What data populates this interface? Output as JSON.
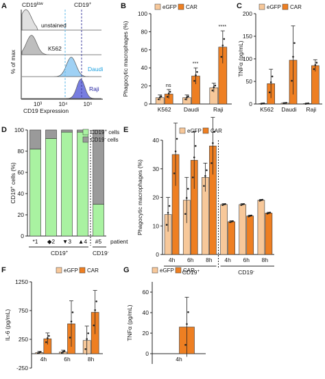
{
  "colors": {
    "egfp": "#f7c89a",
    "car": "#ee7f22",
    "cd19pos": "#a9f2a1",
    "cd19neg": "#9a9a9a",
    "unstained": "#d6d6d6",
    "k562": "#a8a8a8",
    "daudi": "#7fc2f0",
    "raji": "#4a52d6",
    "daudi_text": "#1a9fe0",
    "raji_text": "#2020a0",
    "stroke": "#222222"
  },
  "panels": [
    "A",
    "B",
    "C",
    "D",
    "E",
    "F",
    "G"
  ],
  "chart_data": [
    {
      "panel": "A",
      "type": "histogram",
      "ylabel": "% of max",
      "xlabel": "CD19 Expression",
      "gates": [
        "CD19low",
        "CD19+"
      ],
      "gate_parts": {
        "low_base": "CD19",
        "low_sup": "low",
        "pos_base": "CD19",
        "pos_sup": "+"
      },
      "tick_labels": [
        "10³",
        "10⁴",
        "10⁵"
      ],
      "series": [
        {
          "name": "unstained",
          "peak": 0.05
        },
        {
          "name": "K562",
          "peak": 0.12
        },
        {
          "name": "Daudi",
          "peak": 0.62
        },
        {
          "name": "Raji",
          "peak": 0.77
        }
      ]
    },
    {
      "panel": "B",
      "type": "bar",
      "ylabel": "Phagocytic macrophages (%)",
      "categories": [
        "K562",
        "Daudi",
        "Raji"
      ],
      "ylim": [
        0,
        100
      ],
      "yticks": [
        0,
        20,
        40,
        60,
        80,
        100
      ],
      "legend": [
        "eGFP",
        "CAR"
      ],
      "series": [
        {
          "name": "eGFP",
          "values": [
            7,
            7,
            18
          ],
          "err": [
            3,
            3,
            5
          ]
        },
        {
          "name": "CAR",
          "values": [
            11,
            31,
            63
          ],
          "err": [
            5,
            9,
            18
          ]
        }
      ],
      "significance": [
        "ns",
        "***",
        "****"
      ]
    },
    {
      "panel": "C",
      "type": "bar",
      "ylabel": "TNFα (pg/mL)",
      "categories": [
        "K562",
        "Daudi",
        "Raji"
      ],
      "ylim": [
        0,
        200
      ],
      "yticks": [
        0,
        50,
        100,
        150,
        200
      ],
      "legend": [
        "eGFP",
        "CAR"
      ],
      "series": [
        {
          "name": "eGFP",
          "values": [
            1,
            2,
            1
          ],
          "err": [
            1,
            1,
            1
          ]
        },
        {
          "name": "CAR",
          "values": [
            45,
            97,
            85
          ],
          "err": [
            32,
            76,
            13
          ]
        }
      ]
    },
    {
      "panel": "D",
      "type": "bar",
      "ylabel": "CD19⁺ cells (%)",
      "ylabel_parts": {
        "base": "CD19",
        "sup": "+",
        "rest": " cells (%)"
      },
      "categories": [
        "*1",
        "◆2",
        "▼3",
        "▲4",
        "#5"
      ],
      "group_labels": [
        "CD19+",
        "CD19-"
      ],
      "group_parts": [
        {
          "base": "CD19",
          "sup": "+"
        },
        {
          "base": "CD19",
          "sup": "-"
        }
      ],
      "xlabel_suffix": "patient",
      "ylim": [
        0,
        100
      ],
      "yticks": [
        0,
        20,
        40,
        60,
        80,
        100
      ],
      "legend": [
        "CD19+ cells",
        "CD19- cells"
      ],
      "legend_parts": [
        {
          "base": "CD19",
          "sup": "+",
          "rest": " cells"
        },
        {
          "base": "CD19",
          "sup": "-",
          "rest": " cells"
        }
      ],
      "series": [
        {
          "name": "CD19+ cells",
          "values": [
            82,
            92,
            98,
            98,
            30
          ]
        },
        {
          "name": "CD19- cells",
          "values": [
            18,
            8,
            2,
            2,
            70
          ]
        }
      ]
    },
    {
      "panel": "E",
      "type": "bar",
      "ylabel": "Phagocytic macrophages (%)",
      "categories": [
        "4h",
        "6h",
        "8h",
        "4h",
        "6h",
        "8h"
      ],
      "group_labels": [
        "CD19+",
        "CD19-"
      ],
      "group_parts": [
        {
          "base": "CD19",
          "sup": "+"
        },
        {
          "base": "CD19",
          "sup": "-"
        }
      ],
      "ylim": [
        0,
        40
      ],
      "yticks": [
        0,
        10,
        20,
        30,
        40
      ],
      "legend": [
        "eGFP",
        "CAR"
      ],
      "series": [
        {
          "name": "eGFP",
          "values": [
            14,
            19,
            27,
            17.5,
            17.5,
            19
          ],
          "err": [
            6,
            8,
            5,
            0.3,
            0.3,
            0.3
          ]
        },
        {
          "name": "CAR",
          "values": [
            35,
            33,
            38,
            11.5,
            13.5,
            14.5
          ],
          "err": [
            11,
            10,
            10,
            0.3,
            0.3,
            0.3
          ]
        }
      ]
    },
    {
      "panel": "F",
      "type": "bar",
      "ylabel": "IL-6 (pg/mL)",
      "categories": [
        "4h",
        "6h",
        "8h"
      ],
      "ylim": [
        -250,
        1250
      ],
      "yticks": [
        -250,
        250,
        750,
        1250
      ],
      "legend": [
        "eGFP",
        "CAR"
      ],
      "series": [
        {
          "name": "eGFP",
          "values": [
            20,
            30,
            230
          ],
          "err": [
            20,
            30,
            250
          ]
        },
        {
          "name": "CAR",
          "values": [
            260,
            520,
            720
          ],
          "err": [
            100,
            400,
            380
          ]
        }
      ]
    },
    {
      "panel": "G",
      "type": "bar",
      "ylabel": "TNFα (pg/mL)",
      "categories": [
        "4h"
      ],
      "ylim": [
        -10,
        70
      ],
      "yticks": [
        0,
        20,
        40,
        60
      ],
      "legend": [
        "eGFP",
        "CAR"
      ],
      "series": [
        {
          "name": "eGFP",
          "values": [
            0
          ],
          "err": [
            0
          ]
        },
        {
          "name": "CAR",
          "values": [
            26
          ],
          "err": [
            29
          ]
        }
      ]
    }
  ]
}
